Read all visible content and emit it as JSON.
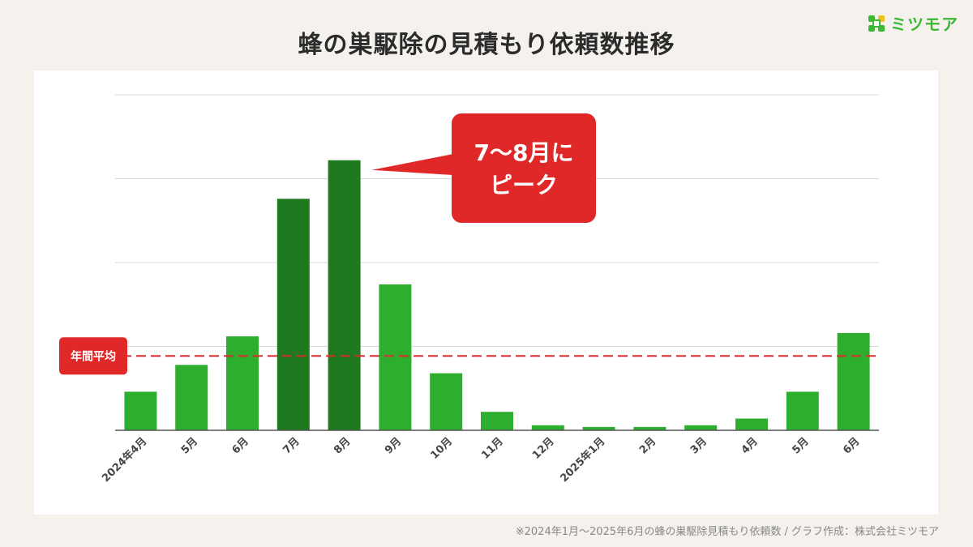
{
  "title": "蜂の巣駆除の見積もり依頼数推移",
  "brand": {
    "name": "ミツモア",
    "icon": "mitsumore-logo-icon",
    "color": "#3db836"
  },
  "footnote": "※2024年1月〜2025年6月の蜂の巣駆除見積もり依頼数 / グラフ作成：株式会社ミツモア",
  "chart_data": {
    "type": "bar",
    "title": "蜂の巣駆除の見積もり依頼数推移",
    "xlabel": "",
    "ylabel": "",
    "categories": [
      "2024年4月",
      "5月",
      "6月",
      "7月",
      "8月",
      "9月",
      "10月",
      "11月",
      "12月",
      "2025年1月",
      "2月",
      "3月",
      "4月",
      "5月",
      "6月"
    ],
    "values": [
      23,
      39,
      56,
      138,
      161,
      87,
      34,
      11,
      3,
      2,
      2,
      3,
      7,
      23,
      58
    ],
    "highlighted_categories": [
      "7月",
      "8月"
    ],
    "ylim": [
      0,
      200
    ],
    "grid": true,
    "yticks_shown": false,
    "colors": {
      "bar": "#2eae2e",
      "bar_highlight": "#1f7a1f",
      "average_line": "#d92b2b",
      "callout": "#e02828"
    },
    "average": {
      "label": "年間平均",
      "value": 44.3
    },
    "annotation": {
      "lines": [
        "7〜8月に",
        "ピーク"
      ],
      "target_category": "8月"
    }
  }
}
